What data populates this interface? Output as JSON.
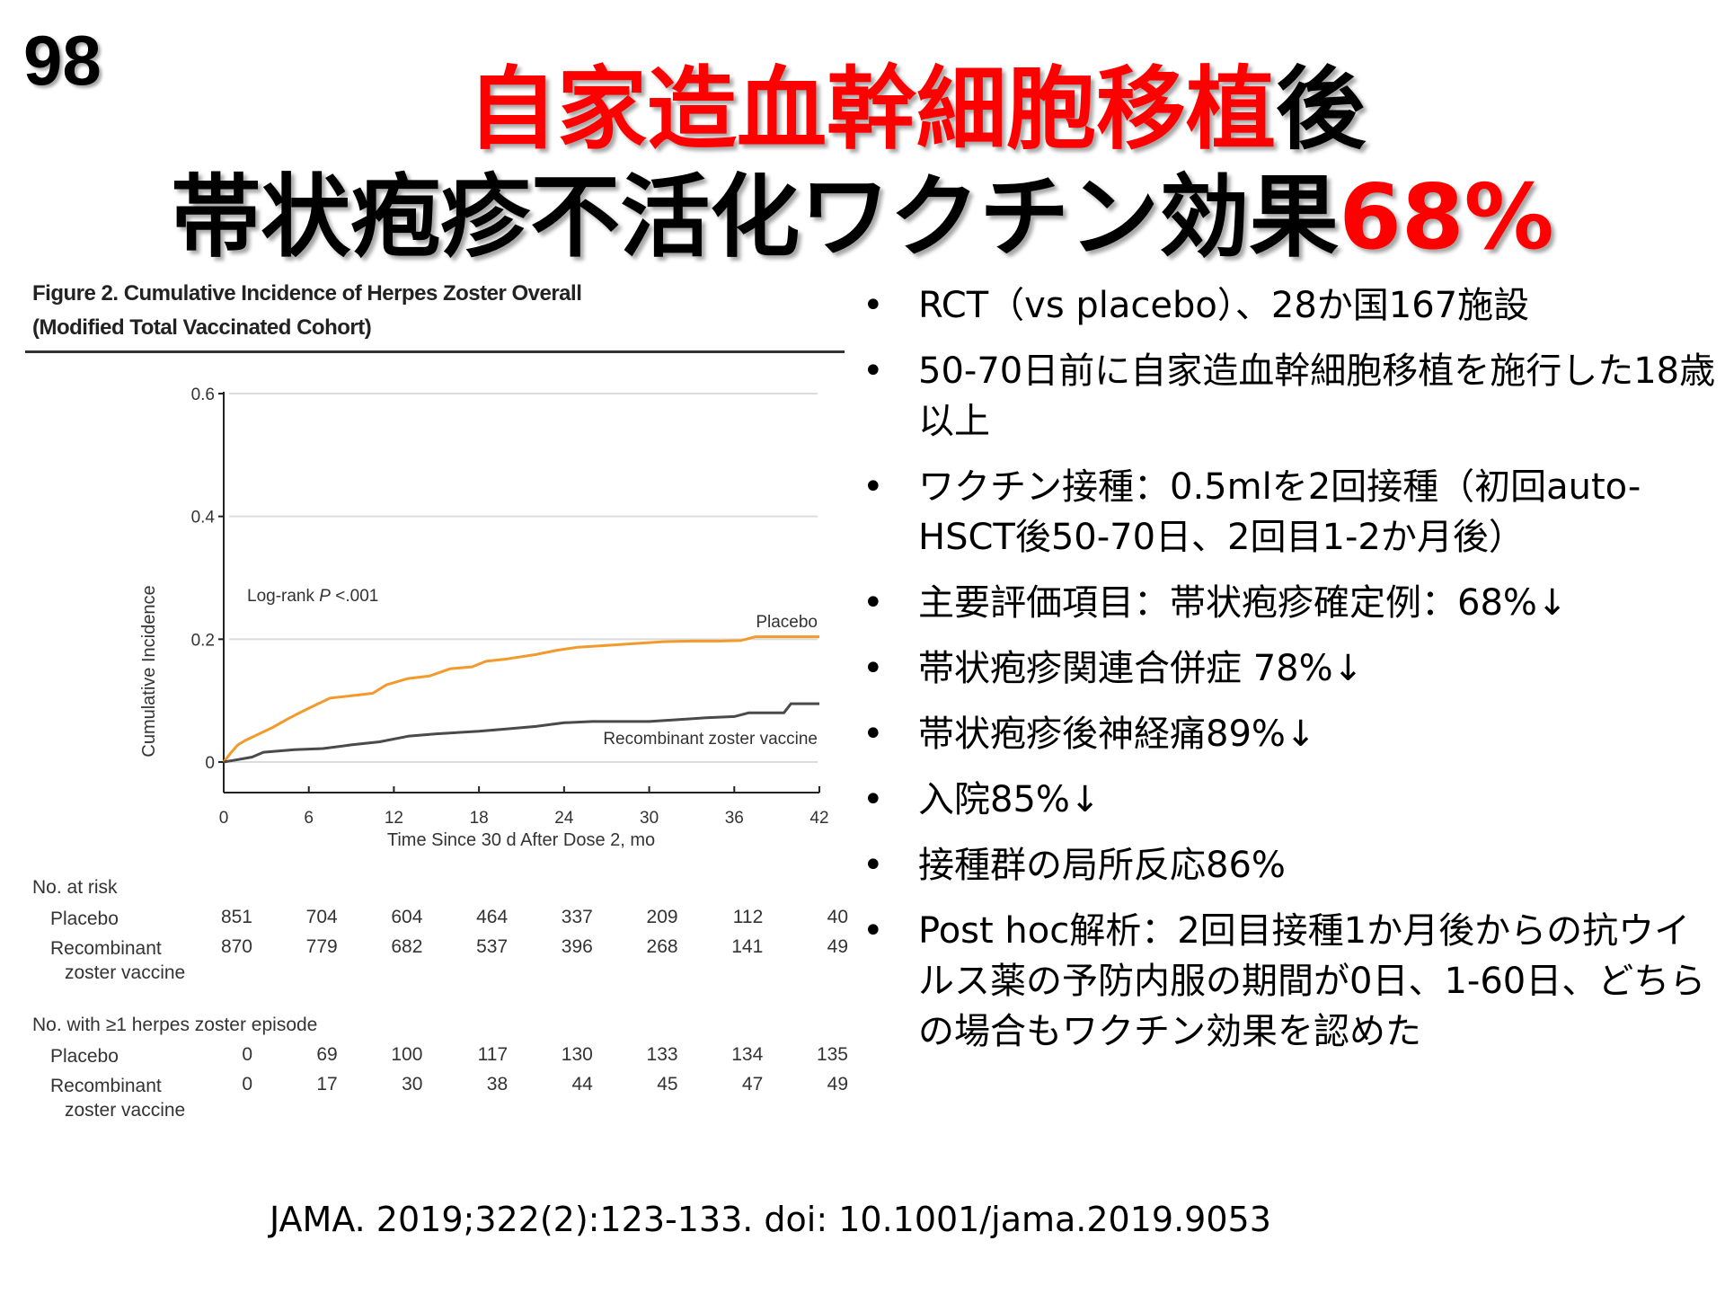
{
  "slide_number": "98",
  "title": {
    "line1_red": "自家造血幹細胞移植",
    "line1_black": "後",
    "line2_black": "帯状疱疹不活化ワクチン効果",
    "line2_red": "68%"
  },
  "figure": {
    "title_line1": "Figure 2. Cumulative Incidence of Herpes Zoster Overall",
    "title_line2": "(Modified Total Vaccinated Cohort)"
  },
  "chart_data": {
    "type": "line",
    "title": "Figure 2. Cumulative Incidence of Herpes Zoster Overall (Modified Total Vaccinated Cohort)",
    "xlabel": "Time Since 30 d After Dose 2, mo",
    "ylabel": "Cumulative Incidence",
    "xlim": [
      0,
      42
    ],
    "ylim": [
      0,
      0.6
    ],
    "xticks": [
      0,
      6,
      12,
      18,
      24,
      30,
      36,
      42
    ],
    "xtick_labels": [
      "0",
      "6",
      "12",
      "18",
      "24",
      "30",
      "36",
      "42"
    ],
    "yticks": [
      0,
      0.2,
      0.4,
      0.6
    ],
    "ytick_labels": [
      "0",
      "0.2",
      "0.4",
      "0.6"
    ],
    "grid": true,
    "annotation": "Log-rank P <.001",
    "annotation_prefix": "Log-rank ",
    "annotation_italic": "P",
    "annotation_suffix": " <.001",
    "series": [
      {
        "name": "Placebo",
        "color": "#f39a2c",
        "x": [
          0,
          0.5,
          1,
          1.5,
          2.5,
          3.5,
          4.5,
          5.5,
          6.5,
          7.5,
          9,
          10.5,
          11.5,
          13,
          14.5,
          16,
          17.5,
          18.5,
          20,
          22,
          23.5,
          25,
          27,
          29,
          31,
          33,
          35,
          36.5,
          37.5,
          40,
          42
        ],
        "y": [
          0,
          0.015,
          0.028,
          0.035,
          0.046,
          0.057,
          0.07,
          0.082,
          0.093,
          0.104,
          0.108,
          0.112,
          0.126,
          0.136,
          0.14,
          0.152,
          0.155,
          0.164,
          0.168,
          0.175,
          0.182,
          0.187,
          0.19,
          0.193,
          0.196,
          0.197,
          0.197,
          0.198,
          0.204,
          0.204,
          0.204
        ]
      },
      {
        "name": "Recombinant zoster vaccine",
        "color": "#4a4a4a",
        "x": [
          0,
          1,
          2,
          2.8,
          5,
          7,
          9,
          11,
          13,
          15,
          18,
          20,
          22,
          24,
          26,
          30,
          32,
          34,
          36,
          37,
          39.5,
          40,
          42
        ],
        "y": [
          0,
          0.004,
          0.008,
          0.016,
          0.02,
          0.022,
          0.028,
          0.033,
          0.042,
          0.046,
          0.05,
          0.054,
          0.058,
          0.064,
          0.066,
          0.066,
          0.069,
          0.072,
          0.074,
          0.08,
          0.08,
          0.095,
          0.095
        ]
      }
    ],
    "series_labels": [
      "Placebo",
      "Recombinant zoster vaccine"
    ],
    "risk_tables": [
      {
        "heading": "No. at risk",
        "rows": [
          {
            "label": "Placebo",
            "label2": "",
            "values": [
              "851",
              "704",
              "604",
              "464",
              "337",
              "209",
              "112",
              "40"
            ]
          },
          {
            "label": "Recombinant",
            "label2": "zoster vaccine",
            "values": [
              "870",
              "779",
              "682",
              "537",
              "396",
              "268",
              "141",
              "49"
            ]
          }
        ]
      },
      {
        "heading": "No. with ≥1 herpes zoster episode",
        "rows": [
          {
            "label": "Placebo",
            "label2": "",
            "values": [
              "0",
              "69",
              "100",
              "117",
              "130",
              "133",
              "134",
              "135"
            ]
          },
          {
            "label": "Recombinant",
            "label2": "zoster vaccine",
            "values": [
              "0",
              "17",
              "30",
              "38",
              "44",
              "45",
              "47",
              "49"
            ]
          }
        ]
      }
    ]
  },
  "bullets": {
    "marker": "•",
    "items": [
      "RCT（vs placebo）、28か国167施設",
      "50-70日前に自家造血幹細胞移植を施行した18歳以上",
      "ワクチン接種：0.5mlを2回接種（初回auto-HSCT後50-70日、2回目1-2か月後）",
      "主要評価項目：帯状疱疹確定例：68%↓",
      "帯状疱疹関連合併症 78%↓",
      "帯状疱疹後神経痛89%↓",
      "入院85%↓",
      "接種群の局所反応86%",
      "Post hoc解析：2回目接種1か月後からの抗ウイルス薬の予防内服の期間が0日、1-60日、どちらの場合もワクチン効果を認めた"
    ]
  },
  "citation": "JAMA. 2019;322(2):123-133. doi: 10.1001/jama.2019.9053",
  "colors": {
    "title_red": "#ff0000",
    "placebo": "#f39a2c",
    "vaccine": "#4a4a4a"
  }
}
